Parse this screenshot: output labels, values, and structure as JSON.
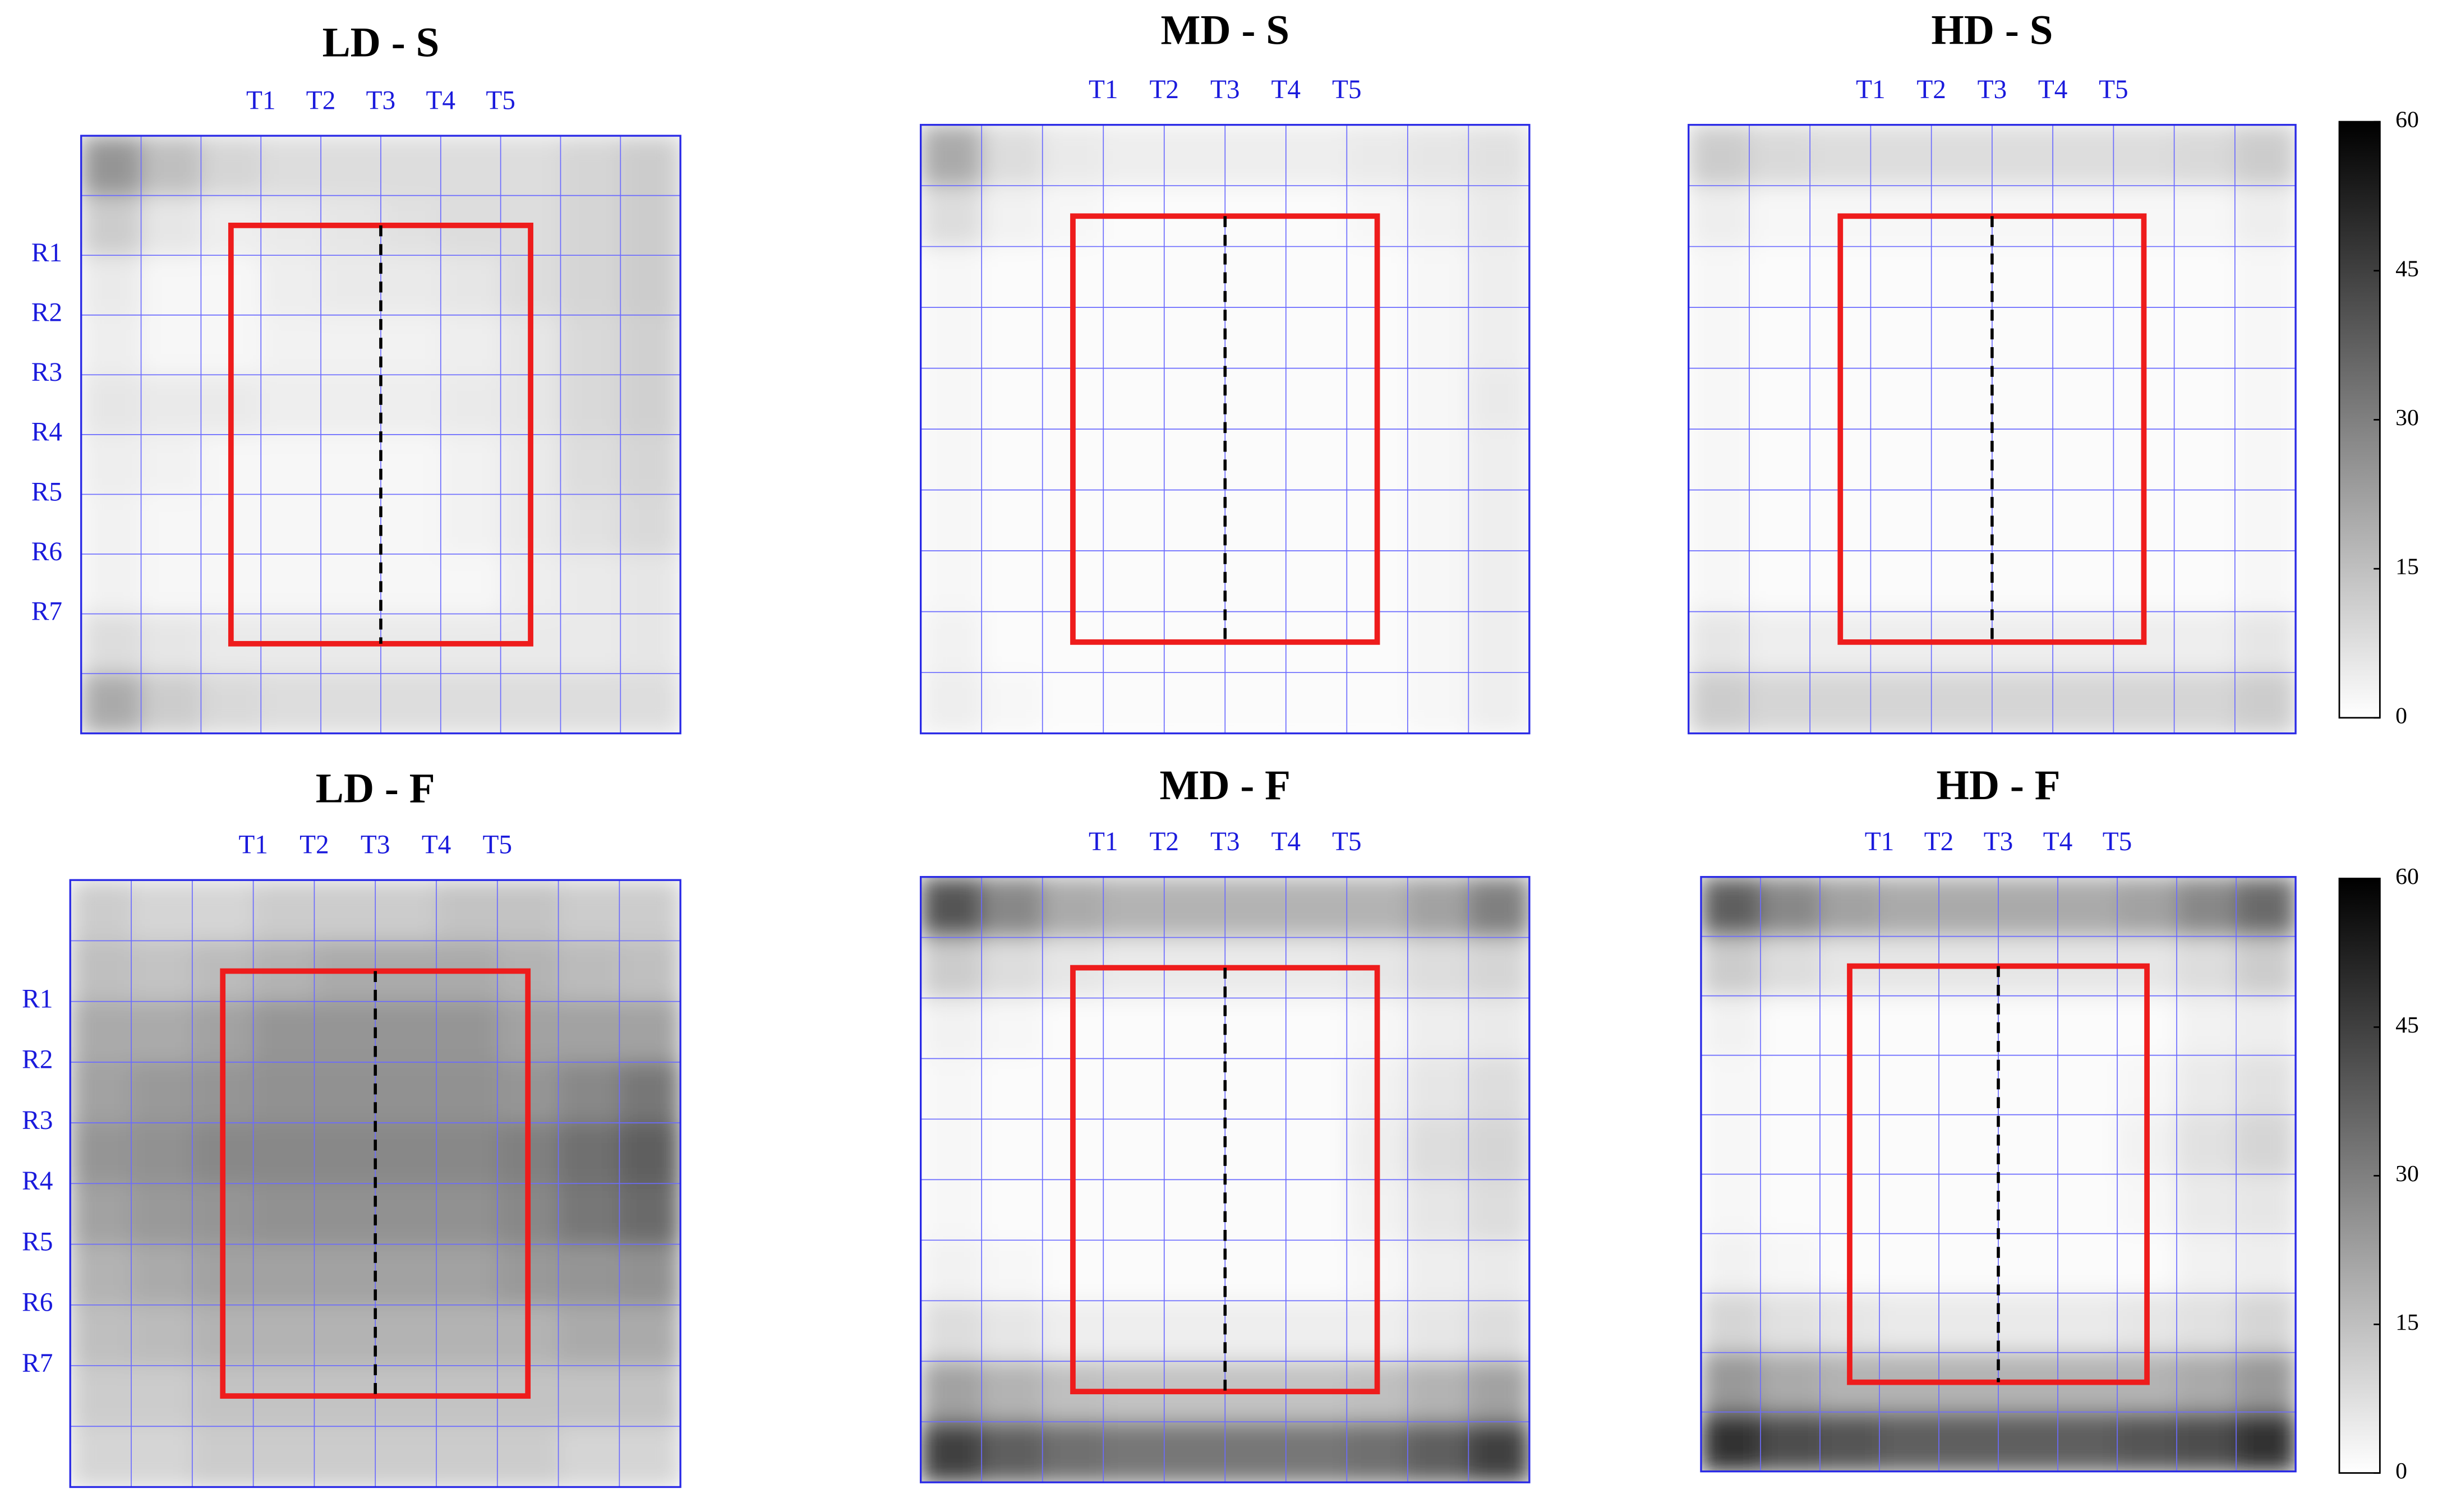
{
  "chart_data": [
    {
      "type": "heatmap",
      "title": "LD - S",
      "x_labels": [
        "T1",
        "T2",
        "T3",
        "T4",
        "T5"
      ],
      "y_labels": [
        "R1",
        "R2",
        "R3",
        "R4",
        "R5",
        "R6",
        "R7"
      ],
      "zlim": [
        0,
        60
      ],
      "z": [
        [
          25,
          15,
          10,
          8,
          8,
          8,
          8,
          8,
          10,
          12
        ],
        [
          12,
          6,
          4,
          5,
          6,
          7,
          8,
          8,
          10,
          12
        ],
        [
          5,
          2,
          2,
          4,
          5,
          5,
          6,
          8,
          10,
          12
        ],
        [
          4,
          2,
          2,
          3,
          3,
          3,
          4,
          6,
          9,
          11
        ],
        [
          6,
          5,
          5,
          4,
          4,
          4,
          5,
          6,
          9,
          11
        ],
        [
          4,
          3,
          2,
          2,
          2,
          2,
          3,
          5,
          8,
          10
        ],
        [
          3,
          2,
          2,
          2,
          2,
          2,
          3,
          5,
          7,
          9
        ],
        [
          3,
          2,
          2,
          2,
          2,
          2,
          2,
          4,
          5,
          6
        ],
        [
          8,
          6,
          5,
          5,
          5,
          5,
          5,
          5,
          5,
          6
        ],
        [
          20,
          12,
          9,
          8,
          8,
          8,
          8,
          8,
          8,
          8
        ]
      ]
    },
    {
      "type": "heatmap",
      "title": "MD - S",
      "x_labels": [
        "T1",
        "T2",
        "T3",
        "T4",
        "T5"
      ],
      "zlim": [
        0,
        60
      ],
      "z": [
        [
          20,
          8,
          5,
          4,
          4,
          4,
          4,
          5,
          6,
          7
        ],
        [
          8,
          3,
          2,
          1,
          1,
          1,
          1,
          2,
          3,
          5
        ],
        [
          2,
          1,
          1,
          1,
          1,
          1,
          1,
          1,
          2,
          4
        ],
        [
          2,
          1,
          1,
          1,
          1,
          1,
          1,
          1,
          2,
          4
        ],
        [
          2,
          1,
          1,
          1,
          1,
          1,
          1,
          1,
          2,
          5
        ],
        [
          2,
          1,
          1,
          1,
          1,
          1,
          1,
          1,
          2,
          4
        ],
        [
          2,
          1,
          1,
          1,
          1,
          1,
          1,
          1,
          2,
          4
        ],
        [
          2,
          1,
          1,
          1,
          1,
          1,
          1,
          1,
          2,
          4
        ],
        [
          3,
          1,
          1,
          1,
          1,
          1,
          1,
          1,
          2,
          4
        ],
        [
          4,
          2,
          1,
          1,
          1,
          1,
          1,
          1,
          2,
          4
        ]
      ]
    },
    {
      "type": "heatmap",
      "title": "HD - S",
      "x_labels": [
        "T1",
        "T2",
        "T3",
        "T4",
        "T5"
      ],
      "zlim": [
        0,
        60
      ],
      "zticks": [
        0,
        15,
        30,
        45,
        60
      ],
      "z": [
        [
          12,
          9,
          8,
          8,
          8,
          8,
          8,
          8,
          9,
          12
        ],
        [
          4,
          2,
          2,
          2,
          2,
          2,
          2,
          2,
          2,
          4
        ],
        [
          2,
          1,
          1,
          1,
          1,
          1,
          1,
          1,
          1,
          2
        ],
        [
          2,
          1,
          1,
          1,
          1,
          1,
          1,
          1,
          1,
          2
        ],
        [
          2,
          1,
          1,
          1,
          1,
          1,
          1,
          1,
          1,
          2
        ],
        [
          2,
          1,
          1,
          1,
          1,
          1,
          1,
          1,
          1,
          2
        ],
        [
          2,
          1,
          1,
          1,
          1,
          1,
          1,
          1,
          1,
          2
        ],
        [
          2,
          1,
          1,
          1,
          1,
          1,
          1,
          1,
          1,
          2
        ],
        [
          6,
          4,
          4,
          4,
          4,
          4,
          4,
          4,
          4,
          6
        ],
        [
          12,
          10,
          10,
          10,
          10,
          10,
          10,
          10,
          10,
          12
        ]
      ]
    },
    {
      "type": "heatmap",
      "title": "LD - F",
      "x_labels": [
        "T1",
        "T2",
        "T3",
        "T4",
        "T5"
      ],
      "y_labels": [
        "R1",
        "R2",
        "R3",
        "R4",
        "R5",
        "R6",
        "R7"
      ],
      "zlim": [
        0,
        60
      ],
      "z": [
        [
          12,
          10,
          10,
          12,
          12,
          12,
          14,
          14,
          12,
          12
        ],
        [
          15,
          14,
          16,
          18,
          20,
          20,
          20,
          18,
          16,
          15
        ],
        [
          20,
          20,
          22,
          25,
          25,
          25,
          25,
          22,
          22,
          22
        ],
        [
          22,
          24,
          25,
          26,
          26,
          26,
          26,
          25,
          28,
          32
        ],
        [
          25,
          26,
          28,
          28,
          28,
          28,
          28,
          30,
          34,
          38
        ],
        [
          22,
          24,
          25,
          26,
          26,
          26,
          26,
          28,
          32,
          35
        ],
        [
          18,
          20,
          22,
          22,
          22,
          22,
          22,
          24,
          25,
          26
        ],
        [
          15,
          16,
          18,
          18,
          18,
          18,
          18,
          18,
          20,
          20
        ],
        [
          12,
          12,
          14,
          14,
          14,
          14,
          14,
          14,
          14,
          14
        ],
        [
          10,
          10,
          12,
          12,
          12,
          12,
          12,
          12,
          10,
          10
        ]
      ]
    },
    {
      "type": "heatmap",
      "title": "MD - F",
      "x_labels": [
        "T1",
        "T2",
        "T3",
        "T4",
        "T5"
      ],
      "zlim": [
        0,
        60
      ],
      "z": [
        [
          40,
          28,
          20,
          18,
          18,
          18,
          18,
          18,
          22,
          30
        ],
        [
          12,
          8,
          6,
          5,
          5,
          5,
          5,
          6,
          8,
          10
        ],
        [
          3,
          2,
          1,
          1,
          1,
          1,
          1,
          2,
          4,
          5
        ],
        [
          2,
          1,
          1,
          1,
          1,
          1,
          1,
          3,
          6,
          8
        ],
        [
          2,
          1,
          1,
          1,
          1,
          1,
          1,
          4,
          8,
          10
        ],
        [
          2,
          1,
          1,
          1,
          1,
          1,
          1,
          3,
          6,
          8
        ],
        [
          3,
          2,
          1,
          1,
          1,
          1,
          1,
          2,
          4,
          5
        ],
        [
          8,
          6,
          4,
          4,
          4,
          4,
          4,
          4,
          6,
          8
        ],
        [
          22,
          18,
          15,
          14,
          14,
          14,
          14,
          15,
          18,
          22
        ],
        [
          45,
          38,
          34,
          32,
          32,
          32,
          32,
          34,
          38,
          45
        ]
      ]
    },
    {
      "type": "heatmap",
      "title": "HD - F",
      "x_labels": [
        "T1",
        "T2",
        "T3",
        "T4",
        "T5"
      ],
      "zlim": [
        0,
        60
      ],
      "zticks": [
        0,
        15,
        30,
        45,
        60
      ],
      "z": [
        [
          38,
          28,
          22,
          20,
          20,
          20,
          20,
          22,
          28,
          35
        ],
        [
          12,
          8,
          6,
          6,
          6,
          6,
          6,
          6,
          8,
          12
        ],
        [
          3,
          1,
          1,
          1,
          1,
          1,
          1,
          1,
          3,
          4
        ],
        [
          2,
          1,
          1,
          1,
          1,
          1,
          1,
          2,
          5,
          7
        ],
        [
          2,
          1,
          1,
          1,
          1,
          1,
          1,
          3,
          7,
          10
        ],
        [
          2,
          1,
          1,
          1,
          1,
          1,
          1,
          2,
          5,
          6
        ],
        [
          3,
          2,
          1,
          1,
          1,
          1,
          1,
          1,
          3,
          4
        ],
        [
          10,
          7,
          6,
          5,
          5,
          5,
          5,
          6,
          7,
          10
        ],
        [
          24,
          20,
          18,
          18,
          18,
          18,
          18,
          18,
          20,
          24
        ],
        [
          48,
          42,
          40,
          38,
          38,
          38,
          38,
          40,
          42,
          48
        ]
      ]
    }
  ]
}
